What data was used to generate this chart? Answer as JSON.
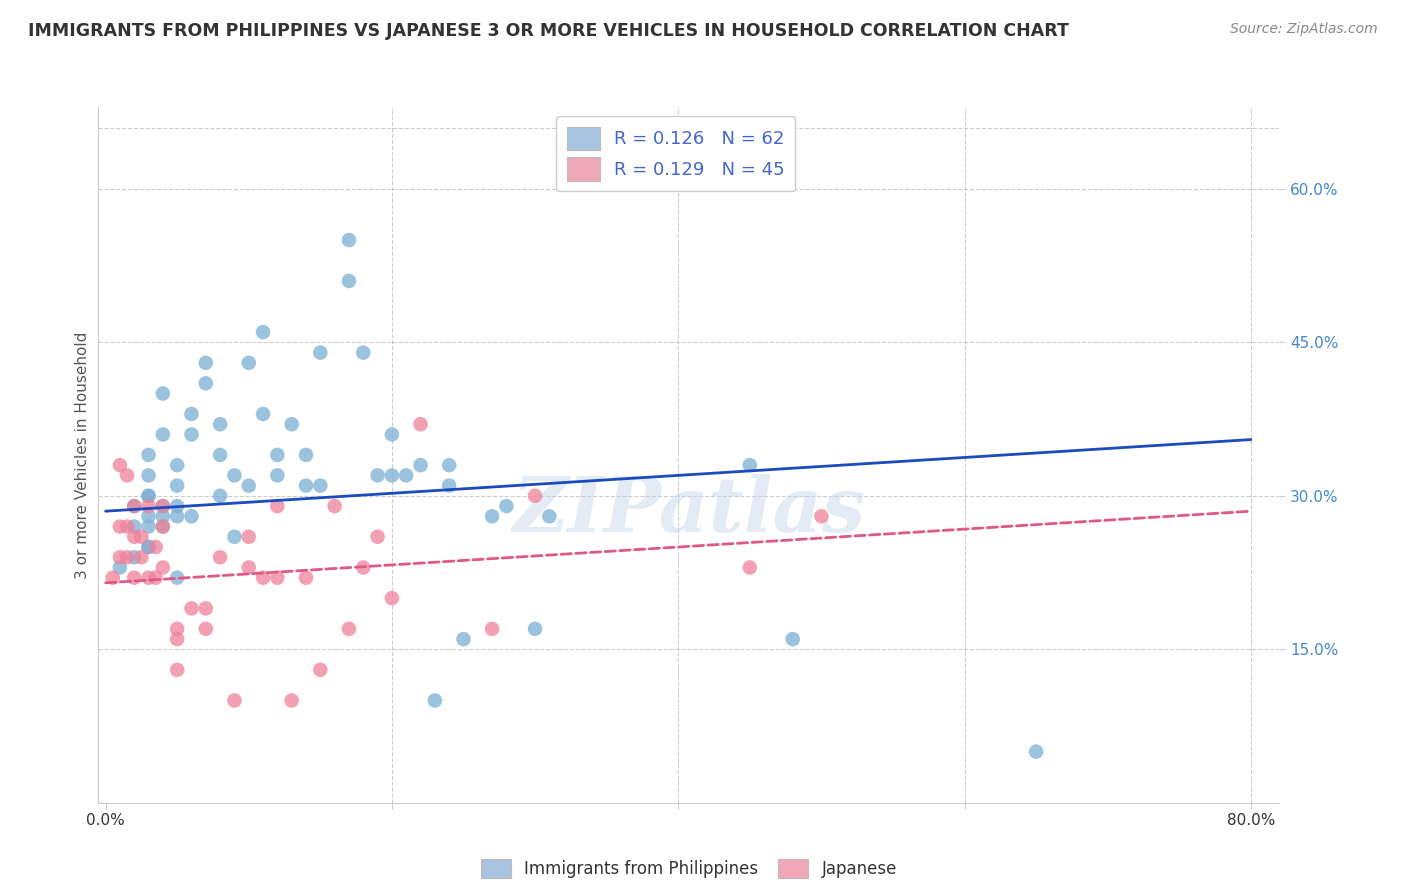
{
  "title": "IMMIGRANTS FROM PHILIPPINES VS JAPANESE 3 OR MORE VEHICLES IN HOUSEHOLD CORRELATION CHART",
  "source": "Source: ZipAtlas.com",
  "xlabel_ticks": [
    "0.0%",
    "",
    "",
    "",
    "80.0%"
  ],
  "xlabel_tick_vals": [
    0.0,
    0.2,
    0.4,
    0.6,
    0.8
  ],
  "ylabel": "3 or more Vehicles in Household",
  "ylabel_right_ticks": [
    "60.0%",
    "45.0%",
    "30.0%",
    "15.0%"
  ],
  "ylabel_right_tick_vals": [
    0.6,
    0.45,
    0.3,
    0.15
  ],
  "ylim": [
    0.0,
    0.68
  ],
  "xlim": [
    -0.005,
    0.82
  ],
  "legend_color1": "#a8c4e0",
  "legend_color2": "#f0a8b8",
  "scatter_color1": "#7bafd4",
  "scatter_color2": "#f08098",
  "line_color1": "#1a4bbf",
  "line_color2": "#e05888",
  "watermark": "ZIPatlas",
  "background_color": "#ffffff",
  "grid_color": "#cccccc",
  "blue_pts_x": [
    0.01,
    0.02,
    0.02,
    0.02,
    0.03,
    0.03,
    0.03,
    0.03,
    0.03,
    0.03,
    0.03,
    0.03,
    0.04,
    0.04,
    0.04,
    0.04,
    0.04,
    0.05,
    0.05,
    0.05,
    0.05,
    0.05,
    0.06,
    0.06,
    0.06,
    0.07,
    0.07,
    0.08,
    0.08,
    0.08,
    0.09,
    0.09,
    0.1,
    0.1,
    0.11,
    0.11,
    0.12,
    0.12,
    0.13,
    0.14,
    0.14,
    0.15,
    0.15,
    0.17,
    0.17,
    0.18,
    0.19,
    0.2,
    0.2,
    0.21,
    0.22,
    0.23,
    0.24,
    0.24,
    0.25,
    0.27,
    0.28,
    0.3,
    0.31,
    0.45,
    0.48,
    0.65
  ],
  "blue_pts_y": [
    0.23,
    0.29,
    0.24,
    0.27,
    0.25,
    0.28,
    0.3,
    0.25,
    0.27,
    0.3,
    0.32,
    0.34,
    0.36,
    0.4,
    0.27,
    0.28,
    0.29,
    0.28,
    0.29,
    0.31,
    0.33,
    0.22,
    0.36,
    0.38,
    0.28,
    0.41,
    0.43,
    0.34,
    0.37,
    0.3,
    0.32,
    0.26,
    0.43,
    0.31,
    0.46,
    0.38,
    0.32,
    0.34,
    0.37,
    0.34,
    0.31,
    0.44,
    0.31,
    0.55,
    0.51,
    0.44,
    0.32,
    0.36,
    0.32,
    0.32,
    0.33,
    0.1,
    0.33,
    0.31,
    0.16,
    0.28,
    0.29,
    0.17,
    0.28,
    0.33,
    0.16,
    0.05
  ],
  "pink_pts_x": [
    0.005,
    0.01,
    0.01,
    0.01,
    0.015,
    0.015,
    0.015,
    0.02,
    0.02,
    0.02,
    0.025,
    0.025,
    0.03,
    0.03,
    0.035,
    0.035,
    0.04,
    0.04,
    0.04,
    0.05,
    0.05,
    0.05,
    0.06,
    0.07,
    0.07,
    0.08,
    0.09,
    0.1,
    0.1,
    0.11,
    0.12,
    0.12,
    0.13,
    0.14,
    0.15,
    0.16,
    0.17,
    0.18,
    0.19,
    0.2,
    0.22,
    0.27,
    0.3,
    0.45,
    0.5
  ],
  "pink_pts_y": [
    0.22,
    0.33,
    0.27,
    0.24,
    0.32,
    0.27,
    0.24,
    0.29,
    0.26,
    0.22,
    0.26,
    0.24,
    0.29,
    0.22,
    0.25,
    0.22,
    0.29,
    0.23,
    0.27,
    0.16,
    0.17,
    0.13,
    0.19,
    0.17,
    0.19,
    0.24,
    0.1,
    0.23,
    0.26,
    0.22,
    0.29,
    0.22,
    0.1,
    0.22,
    0.13,
    0.29,
    0.17,
    0.23,
    0.26,
    0.2,
    0.37,
    0.17,
    0.3,
    0.23,
    0.28
  ],
  "blue_line_x": [
    0.0,
    0.8
  ],
  "blue_line_y": [
    0.285,
    0.355
  ],
  "pink_line_x": [
    0.0,
    0.8
  ],
  "pink_line_y": [
    0.215,
    0.285
  ],
  "legend_R1": "0.126",
  "legend_N1": "62",
  "legend_R2": "0.129",
  "legend_N2": "45",
  "legend_text_color": "#4466cc",
  "title_color": "#333333",
  "source_color": "#888888",
  "ylabel_color": "#555555",
  "tick_label_color": "#333333",
  "right_tick_color": "#4488cc"
}
